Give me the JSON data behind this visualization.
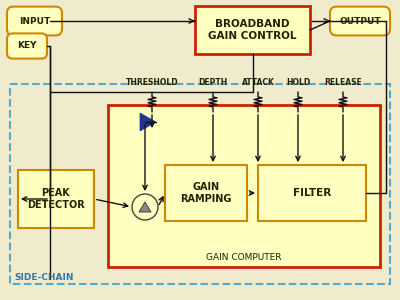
{
  "bg_color": "#f0ebcc",
  "box_fill_yellow": "#ffffc0",
  "box_edge_red": "#cc2200",
  "box_edge_orange": "#cc8800",
  "box_edge_blue": "#55aacc",
  "text_dark": "#222200",
  "text_blue": "#3377aa",
  "arrow_color": "#111111",
  "triangle_blue": "#223399",
  "triangle_gray": "#888888",
  "labels": {
    "input": "INPUT",
    "output": "OUTPUT",
    "key": "KEY",
    "threshold": "THRESHOLD",
    "depth": "DEPTH",
    "attack": "ATTACK",
    "hold": "HOLD",
    "release": "RELEASE",
    "peak_detector": "PEAK\nDETECTOR",
    "gain_ramping": "GAIN\nRAMPING",
    "filter": "FILTER",
    "broadband": "BROADBAND\nGAIN CONTROL",
    "gain_computer": "GAIN COMPUTER",
    "side_chain": "SIDE-CHAIN"
  }
}
